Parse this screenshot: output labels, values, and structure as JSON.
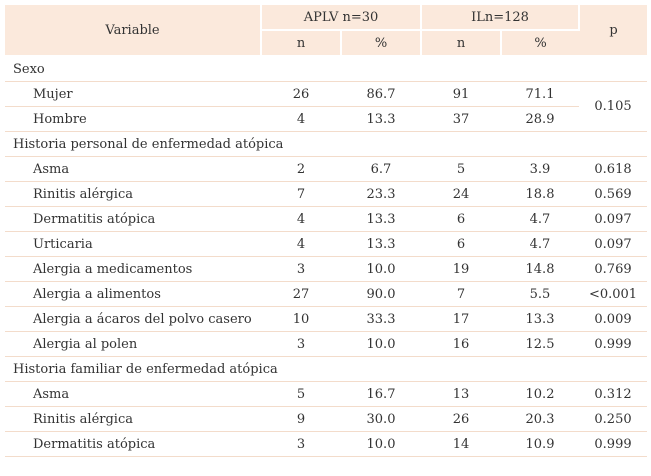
{
  "header": {
    "variable": "Variable",
    "group1": "APLV n=30",
    "group2": "ILn=128",
    "p": "p",
    "n": "n",
    "pct": "%"
  },
  "sections": [
    {
      "title": "Sexo",
      "rows": [
        {
          "label": "Mujer",
          "n1": "26",
          "p1": "86.7",
          "n2": "91",
          "p2": "71.1"
        },
        {
          "label": "Hombre",
          "n1": "4",
          "p1": "13.3",
          "n2": "37",
          "p2": "28.9"
        }
      ],
      "shared_p": "0.105"
    },
    {
      "title": "Historia personal de enfermedad atópica",
      "rows": [
        {
          "label": "Asma",
          "n1": "2",
          "p1": "6.7",
          "n2": "5",
          "p2": "3.9",
          "p": "0.618"
        },
        {
          "label": "Rinitis alérgica",
          "n1": "7",
          "p1": "23.3",
          "n2": "24",
          "p2": "18.8",
          "p": "0.569"
        },
        {
          "label": "Dermatitis atópica",
          "n1": "4",
          "p1": "13.3",
          "n2": "6",
          "p2": "4.7",
          "p": "0.097"
        },
        {
          "label": "Urticaria",
          "n1": "4",
          "p1": "13.3",
          "n2": "6",
          "p2": "4.7",
          "p": "0.097"
        },
        {
          "label": "Alergia a medicamentos",
          "n1": "3",
          "p1": "10.0",
          "n2": "19",
          "p2": "14.8",
          "p": "0.769"
        },
        {
          "label": "Alergia a alimentos",
          "n1": "27",
          "p1": "90.0",
          "n2": "7",
          "p2": "5.5",
          "p": "<0.001"
        },
        {
          "label": "Alergia a ácaros del polvo casero",
          "n1": "10",
          "p1": "33.3",
          "n2": "17",
          "p2": "13.3",
          "p": "0.009"
        },
        {
          "label": "Alergia al polen",
          "n1": "3",
          "p1": "10.0",
          "n2": "16",
          "p2": "12.5",
          "p": "0.999"
        }
      ]
    },
    {
      "title": "Historia familiar de enfermedad atópica",
      "rows": [
        {
          "label": "Asma",
          "n1": "5",
          "p1": "16.7",
          "n2": "13",
          "p2": "10.2",
          "p": "0.312"
        },
        {
          "label": "Rinitis alérgica",
          "n1": "9",
          "p1": "30.0",
          "n2": "26",
          "p2": "20.3",
          "p": "0.250"
        },
        {
          "label": "Dermatitis atópica",
          "n1": "3",
          "p1": "10.0",
          "n2": "14",
          "p2": "10.9",
          "p": "0.999"
        }
      ]
    }
  ]
}
